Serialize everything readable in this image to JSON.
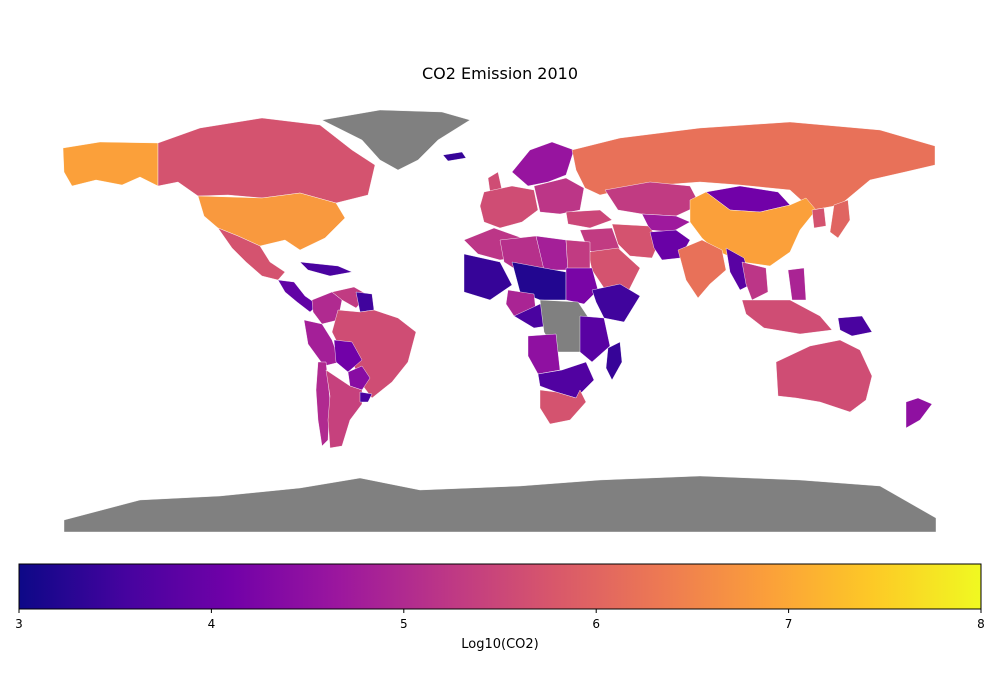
{
  "chart_data": {
    "type": "choropleth",
    "title": "CO2 Emission 2010",
    "colorbar": {
      "label": "Log10(CO2)",
      "min": 3,
      "max": 8,
      "ticks": [
        3,
        4,
        5,
        6,
        7,
        8
      ],
      "tick_labels": [
        "3",
        "4",
        "5",
        "6",
        "7",
        "8"
      ],
      "colormap": [
        "#0d0887",
        "#46039f",
        "#7201a8",
        "#9c179e",
        "#bd3786",
        "#d8576b",
        "#ed7953",
        "#fb9f3a",
        "#fdca26",
        "#f0f921"
      ],
      "no_data_color": "#808080"
    },
    "regions": [
      {
        "name": "Alaska",
        "value": 6.9
      },
      {
        "name": "Canada",
        "value": 5.7
      },
      {
        "name": "Greenland",
        "value": null
      },
      {
        "name": "United States",
        "value": 6.8
      },
      {
        "name": "Mexico",
        "value": 5.7
      },
      {
        "name": "Central America",
        "value": 3.9
      },
      {
        "name": "Caribbean",
        "value": 3.6
      },
      {
        "name": "Colombia",
        "value": 5.0
      },
      {
        "name": "Venezuela",
        "value": 5.3
      },
      {
        "name": "Guianas",
        "value": 3.5
      },
      {
        "name": "Peru",
        "value": 4.8
      },
      {
        "name": "Brazil",
        "value": 5.6
      },
      {
        "name": "Bolivia",
        "value": 4.1
      },
      {
        "name": "Paraguay",
        "value": 4.4
      },
      {
        "name": "Chile",
        "value": 5.0
      },
      {
        "name": "Argentina",
        "value": 5.4
      },
      {
        "name": "Uruguay",
        "value": 3.6
      },
      {
        "name": "Iceland",
        "value": 3.4
      },
      {
        "name": "Scandinavia",
        "value": 4.6
      },
      {
        "name": "United Kingdom",
        "value": 5.6
      },
      {
        "name": "Western Europe",
        "value": 5.6
      },
      {
        "name": "Eastern Europe",
        "value": 5.2
      },
      {
        "name": "Turkey",
        "value": 5.5
      },
      {
        "name": "Russia",
        "value": 6.2
      },
      {
        "name": "Kazakhstan",
        "value": 5.3
      },
      {
        "name": "Central Asia",
        "value": 4.7
      },
      {
        "name": "Mongolia",
        "value": 4.1
      },
      {
        "name": "China",
        "value": 6.9
      },
      {
        "name": "Korea",
        "value": 5.7
      },
      {
        "name": "Japan",
        "value": 6.0
      },
      {
        "name": "Middle East",
        "value": 5.3
      },
      {
        "name": "Saudi Arabia",
        "value": 5.7
      },
      {
        "name": "Iran",
        "value": 5.7
      },
      {
        "name": "Afghanistan / Pakistan",
        "value": 4.0
      },
      {
        "name": "India",
        "value": 6.2
      },
      {
        "name": "Myanmar / Laos",
        "value": 3.8
      },
      {
        "name": "Thailand / Vietnam",
        "value": 5.2
      },
      {
        "name": "Indonesia / Malaysia",
        "value": 5.6
      },
      {
        "name": "Philippines",
        "value": 4.9
      },
      {
        "name": "Papua New Guinea",
        "value": 3.6
      },
      {
        "name": "Australia",
        "value": 5.6
      },
      {
        "name": "New Zealand",
        "value": 4.5
      },
      {
        "name": "North Africa",
        "value": 5.2
      },
      {
        "name": "Algeria",
        "value": 5.1
      },
      {
        "name": "Libya",
        "value": 4.8
      },
      {
        "name": "Egypt",
        "value": 5.3
      },
      {
        "name": "Sahel",
        "value": 3.4
      },
      {
        "name": "Niger / Chad",
        "value": 3.2
      },
      {
        "name": "Nigeria",
        "value": 4.9
      },
      {
        "name": "Sudan",
        "value": 4.2
      },
      {
        "name": "Ethiopia / Somalia",
        "value": 3.5
      },
      {
        "name": "Central Africa",
        "value": 3.6
      },
      {
        "name": "DR Congo",
        "value": null
      },
      {
        "name": "Angola",
        "value": 4.5
      },
      {
        "name": "East Africa",
        "value": 3.8
      },
      {
        "name": "Southern Africa",
        "value": 3.7
      },
      {
        "name": "South Africa",
        "value": 5.7
      },
      {
        "name": "Madagascar",
        "value": 3.4
      },
      {
        "name": "Antarctica",
        "value": null
      }
    ]
  }
}
